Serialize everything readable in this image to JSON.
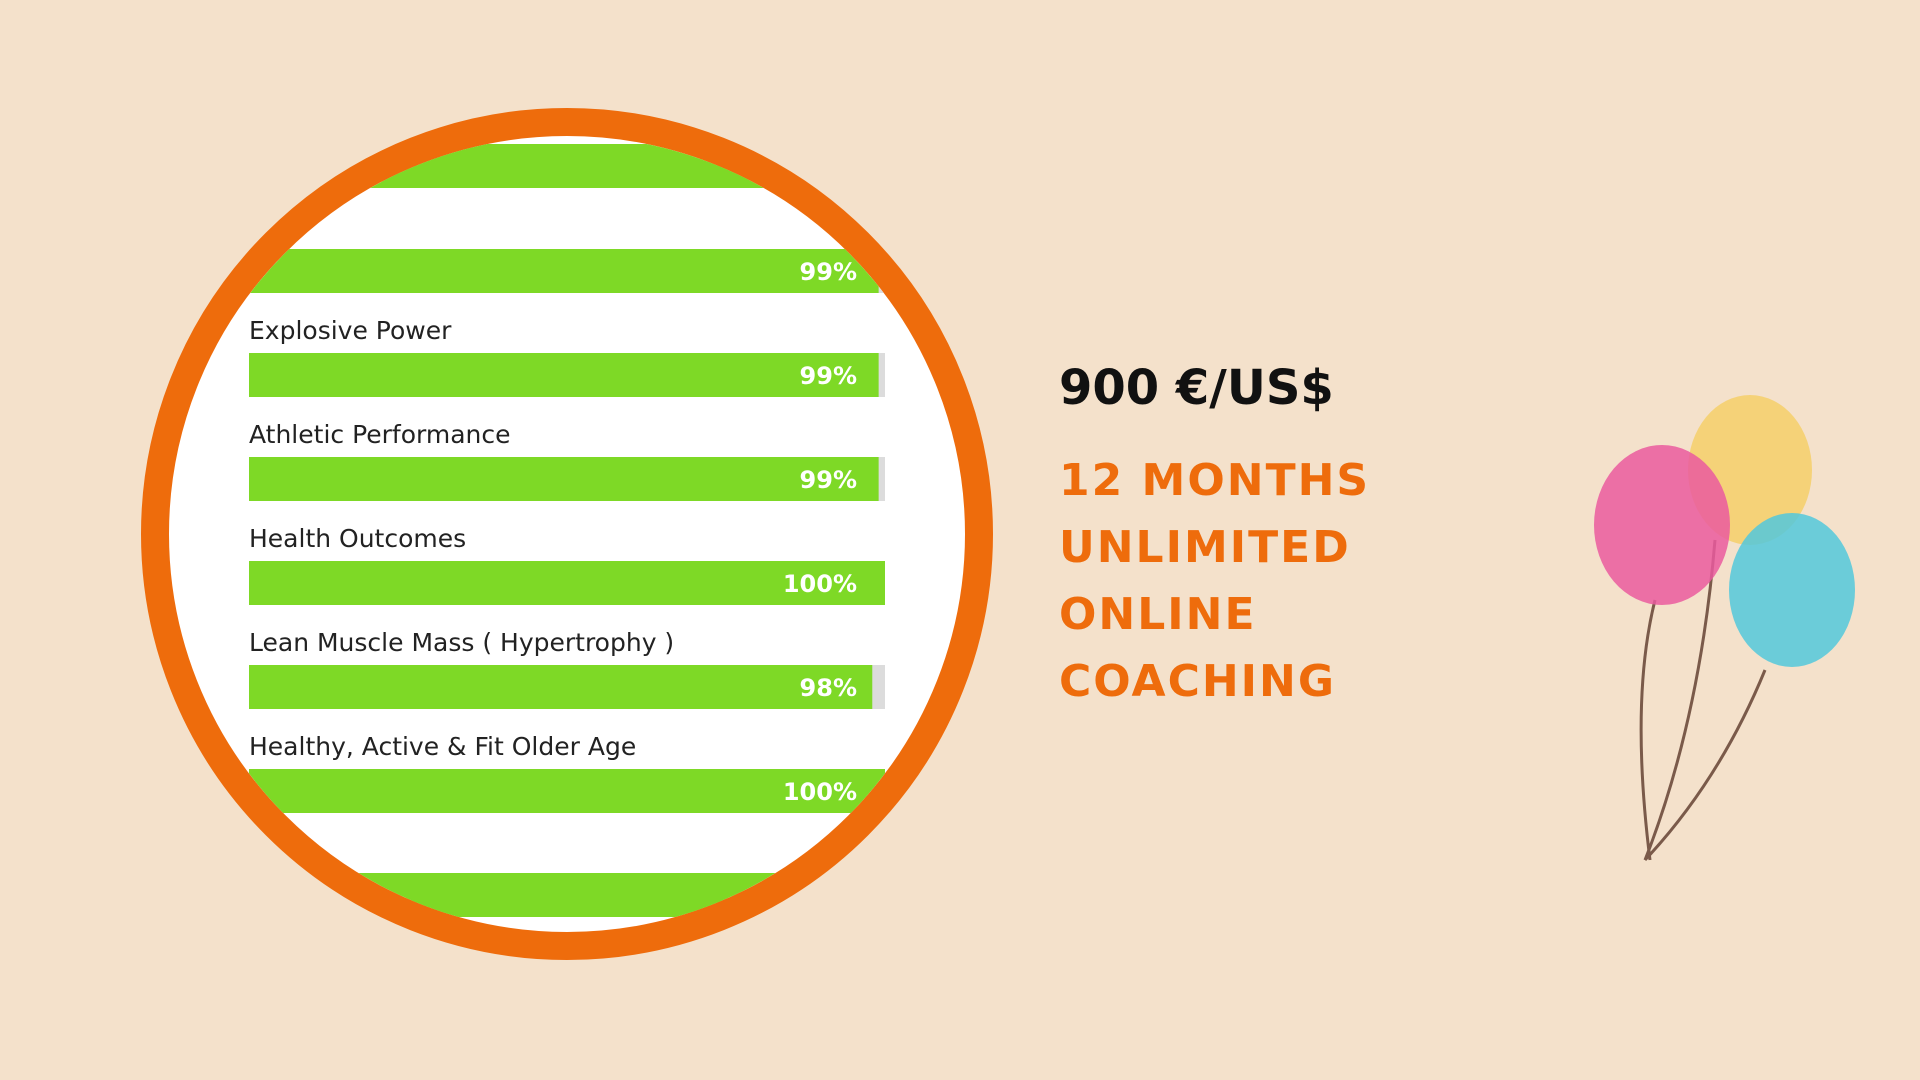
{
  "skills": [
    {
      "value": 99,
      "value_label": "99%"
    },
    {
      "label": "Explosive Power",
      "value": 99,
      "value_label": "99%"
    },
    {
      "label": "Athletic Performance",
      "value": 99,
      "value_label": "99%"
    },
    {
      "label": "Health Outcomes",
      "value": 100,
      "value_label": "100%"
    },
    {
      "label": "Lean Muscle Mass ( Hypertrophy )",
      "value": 98,
      "value_label": "98%"
    },
    {
      "label": "Healthy, Active & Fit Older Age",
      "value": 100,
      "value_label": "100%"
    }
  ],
  "offer": {
    "price": "900 €/US$",
    "lines": [
      "12 MONTHS",
      "UNLIMITED",
      "ONLINE",
      "COACHING"
    ]
  }
}
